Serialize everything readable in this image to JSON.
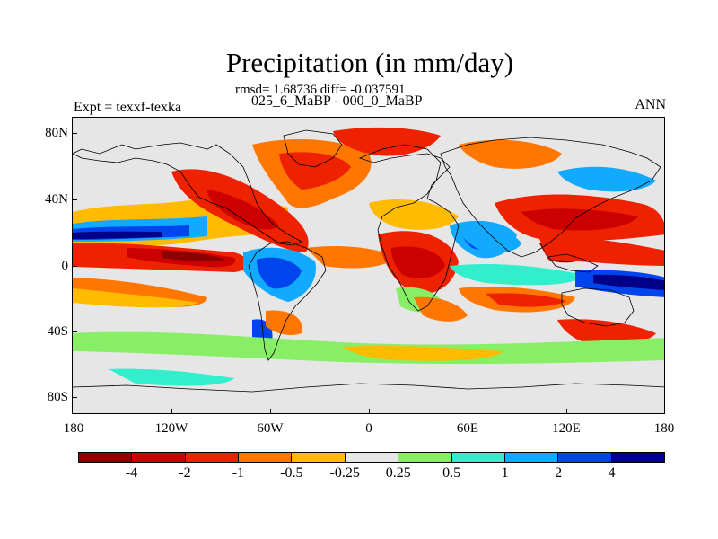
{
  "title": "Precipitation (in mm/day)",
  "stats_text": "rmsd= 1.68736 diff= -0.037591",
  "periods_text": "025_6_MaBP - 000_0_MaBP",
  "expt_text": "Expt = texxf-texka",
  "season": "ANN",
  "lat_labels": [
    "80N",
    "40N",
    "0",
    "40S",
    "80S"
  ],
  "lon_labels": [
    "180",
    "120W",
    "60W",
    "0",
    "60E",
    "120E",
    "180"
  ],
  "colorbar": {
    "colors": [
      "#8b0000",
      "#cc0000",
      "#ee2200",
      "#ff7700",
      "#ffbb00",
      "#e6e6e6",
      "#88ee66",
      "#33eecc",
      "#11aaff",
      "#0044ee",
      "#000088"
    ],
    "labels": [
      "-4",
      "-2",
      "-1",
      "-0.5",
      "-0.25",
      "0.25",
      "0.5",
      "1",
      "2",
      "4"
    ]
  },
  "field_colors": {
    "neutral": "#e6e6e6",
    "strong_dry": "#8b0000",
    "dry": "#cc0000",
    "moderate_dry": "#ee2200",
    "light_dry": "#ff7700",
    "slight_dry": "#ffbb00",
    "slight_wet": "#88ee66",
    "light_wet": "#33eecc",
    "moderate_wet": "#11aaff",
    "wet": "#0044ee",
    "strong_wet": "#000088",
    "coastline": "#000000"
  }
}
